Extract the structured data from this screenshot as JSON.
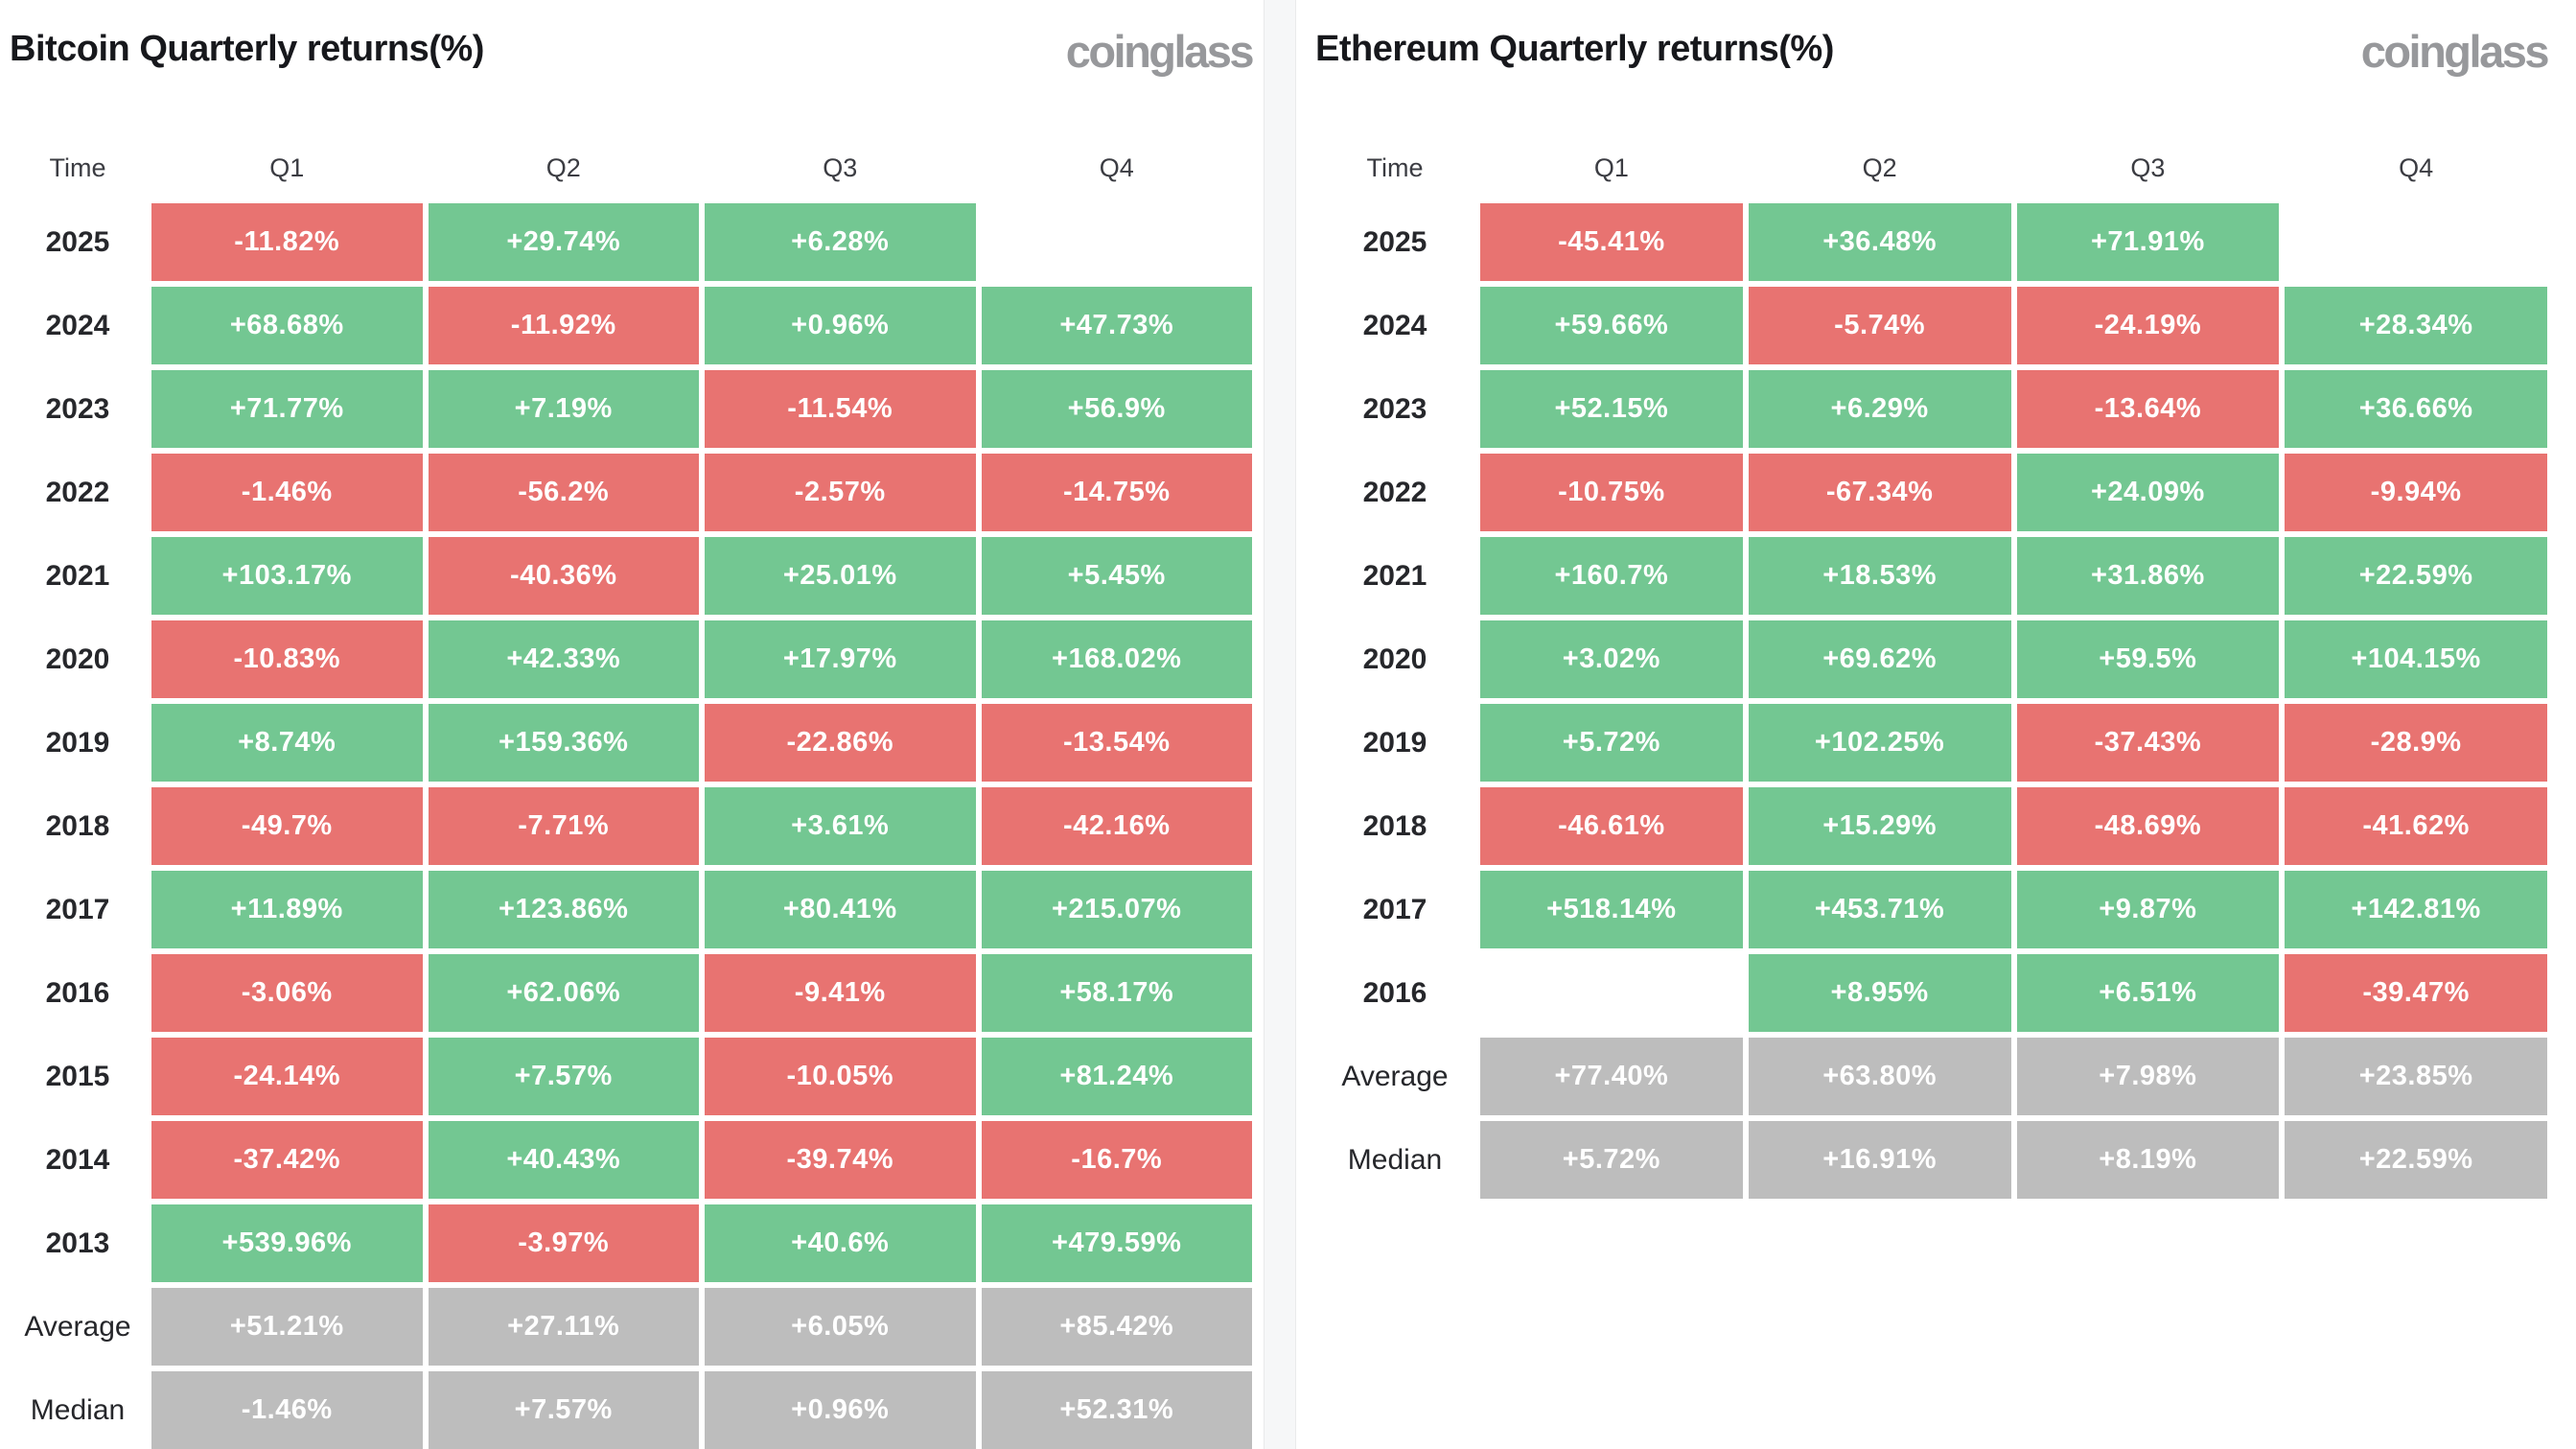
{
  "colors": {
    "positive": "#73C792",
    "negative": "#E87371",
    "summary": "#BDBDBD",
    "cell_text": "#FFFFFF",
    "title_text": "#17181C",
    "brand_text": "#97989B",
    "divider": "#F6F7F8"
  },
  "panels": [
    {
      "title": "Bitcoin Quarterly returns(%)",
      "brand": "coinglass",
      "columns": [
        "Time",
        "Q1",
        "Q2",
        "Q3",
        "Q4"
      ],
      "rows": [
        {
          "label": "2025",
          "kind": "year",
          "cells": [
            "-11.82%",
            "+29.74%",
            "+6.28%",
            ""
          ]
        },
        {
          "label": "2024",
          "kind": "year",
          "cells": [
            "+68.68%",
            "-11.92%",
            "+0.96%",
            "+47.73%"
          ]
        },
        {
          "label": "2023",
          "kind": "year",
          "cells": [
            "+71.77%",
            "+7.19%",
            "-11.54%",
            "+56.9%"
          ]
        },
        {
          "label": "2022",
          "kind": "year",
          "cells": [
            "-1.46%",
            "-56.2%",
            "-2.57%",
            "-14.75%"
          ]
        },
        {
          "label": "2021",
          "kind": "year",
          "cells": [
            "+103.17%",
            "-40.36%",
            "+25.01%",
            "+5.45%"
          ]
        },
        {
          "label": "2020",
          "kind": "year",
          "cells": [
            "-10.83%",
            "+42.33%",
            "+17.97%",
            "+168.02%"
          ]
        },
        {
          "label": "2019",
          "kind": "year",
          "cells": [
            "+8.74%",
            "+159.36%",
            "-22.86%",
            "-13.54%"
          ]
        },
        {
          "label": "2018",
          "kind": "year",
          "cells": [
            "-49.7%",
            "-7.71%",
            "+3.61%",
            "-42.16%"
          ]
        },
        {
          "label": "2017",
          "kind": "year",
          "cells": [
            "+11.89%",
            "+123.86%",
            "+80.41%",
            "+215.07%"
          ]
        },
        {
          "label": "2016",
          "kind": "year",
          "cells": [
            "-3.06%",
            "+62.06%",
            "-9.41%",
            "+58.17%"
          ]
        },
        {
          "label": "2015",
          "kind": "year",
          "cells": [
            "-24.14%",
            "+7.57%",
            "-10.05%",
            "+81.24%"
          ]
        },
        {
          "label": "2014",
          "kind": "year",
          "cells": [
            "-37.42%",
            "+40.43%",
            "-39.74%",
            "-16.7%"
          ]
        },
        {
          "label": "2013",
          "kind": "year",
          "cells": [
            "+539.96%",
            "-3.97%",
            "+40.6%",
            "+479.59%"
          ]
        },
        {
          "label": "Average",
          "kind": "summary",
          "cells": [
            "+51.21%",
            "+27.11%",
            "+6.05%",
            "+85.42%"
          ]
        },
        {
          "label": "Median",
          "kind": "summary",
          "cells": [
            "-1.46%",
            "+7.57%",
            "+0.96%",
            "+52.31%"
          ]
        }
      ]
    },
    {
      "title": "Ethereum Quarterly returns(%)",
      "brand": "coinglass",
      "columns": [
        "Time",
        "Q1",
        "Q2",
        "Q3",
        "Q4"
      ],
      "rows": [
        {
          "label": "2025",
          "kind": "year",
          "cells": [
            "-45.41%",
            "+36.48%",
            "+71.91%",
            ""
          ]
        },
        {
          "label": "2024",
          "kind": "year",
          "cells": [
            "+59.66%",
            "-5.74%",
            "-24.19%",
            "+28.34%"
          ]
        },
        {
          "label": "2023",
          "kind": "year",
          "cells": [
            "+52.15%",
            "+6.29%",
            "-13.64%",
            "+36.66%"
          ]
        },
        {
          "label": "2022",
          "kind": "year",
          "cells": [
            "-10.75%",
            "-67.34%",
            "+24.09%",
            "-9.94%"
          ]
        },
        {
          "label": "2021",
          "kind": "year",
          "cells": [
            "+160.7%",
            "+18.53%",
            "+31.86%",
            "+22.59%"
          ]
        },
        {
          "label": "2020",
          "kind": "year",
          "cells": [
            "+3.02%",
            "+69.62%",
            "+59.5%",
            "+104.15%"
          ]
        },
        {
          "label": "2019",
          "kind": "year",
          "cells": [
            "+5.72%",
            "+102.25%",
            "-37.43%",
            "-28.9%"
          ]
        },
        {
          "label": "2018",
          "kind": "year",
          "cells": [
            "-46.61%",
            "+15.29%",
            "-48.69%",
            "-41.62%"
          ]
        },
        {
          "label": "2017",
          "kind": "year",
          "cells": [
            "+518.14%",
            "+453.71%",
            "+9.87%",
            "+142.81%"
          ]
        },
        {
          "label": "2016",
          "kind": "year",
          "cells": [
            "",
            "+8.95%",
            "+6.51%",
            "-39.47%"
          ]
        },
        {
          "label": "Average",
          "kind": "summary",
          "cells": [
            "+77.40%",
            "+63.80%",
            "+7.98%",
            "+23.85%"
          ]
        },
        {
          "label": "Median",
          "kind": "summary",
          "cells": [
            "+5.72%",
            "+16.91%",
            "+8.19%",
            "+22.59%"
          ]
        }
      ]
    }
  ],
  "chart_data": [
    {
      "type": "heatmap",
      "title": "Bitcoin Quarterly returns(%)",
      "columns": [
        "Q1",
        "Q2",
        "Q3",
        "Q4"
      ],
      "row_labels": [
        "2025",
        "2024",
        "2023",
        "2022",
        "2021",
        "2020",
        "2019",
        "2018",
        "2017",
        "2016",
        "2015",
        "2014",
        "2013",
        "Average",
        "Median"
      ],
      "values": [
        [
          -11.82,
          29.74,
          6.28,
          null
        ],
        [
          68.68,
          -11.92,
          0.96,
          47.73
        ],
        [
          71.77,
          7.19,
          -11.54,
          56.9
        ],
        [
          -1.46,
          -56.2,
          -2.57,
          -14.75
        ],
        [
          103.17,
          -40.36,
          25.01,
          5.45
        ],
        [
          -10.83,
          42.33,
          17.97,
          168.02
        ],
        [
          8.74,
          159.36,
          -22.86,
          -13.54
        ],
        [
          -49.7,
          -7.71,
          3.61,
          -42.16
        ],
        [
          11.89,
          123.86,
          80.41,
          215.07
        ],
        [
          -3.06,
          62.06,
          -9.41,
          58.17
        ],
        [
          -24.14,
          7.57,
          -10.05,
          81.24
        ],
        [
          -37.42,
          40.43,
          -39.74,
          -16.7
        ],
        [
          539.96,
          -3.97,
          40.6,
          479.59
        ],
        [
          51.21,
          27.11,
          6.05,
          85.42
        ],
        [
          -1.46,
          7.57,
          0.96,
          52.31
        ]
      ],
      "color_rule": "green if positive, red if negative, gray for Average/Median rows",
      "unit": "%"
    },
    {
      "type": "heatmap",
      "title": "Ethereum Quarterly returns(%)",
      "columns": [
        "Q1",
        "Q2",
        "Q3",
        "Q4"
      ],
      "row_labels": [
        "2025",
        "2024",
        "2023",
        "2022",
        "2021",
        "2020",
        "2019",
        "2018",
        "2017",
        "2016",
        "Average",
        "Median"
      ],
      "values": [
        [
          -45.41,
          36.48,
          71.91,
          null
        ],
        [
          59.66,
          -5.74,
          -24.19,
          28.34
        ],
        [
          52.15,
          6.29,
          -13.64,
          36.66
        ],
        [
          -10.75,
          -67.34,
          24.09,
          -9.94
        ],
        [
          160.7,
          18.53,
          31.86,
          22.59
        ],
        [
          3.02,
          69.62,
          59.5,
          104.15
        ],
        [
          5.72,
          102.25,
          -37.43,
          -28.9
        ],
        [
          -46.61,
          15.29,
          -48.69,
          -41.62
        ],
        [
          518.14,
          453.71,
          9.87,
          142.81
        ],
        [
          null,
          8.95,
          6.51,
          -39.47
        ],
        [
          77.4,
          63.8,
          7.98,
          23.85
        ],
        [
          5.72,
          16.91,
          8.19,
          22.59
        ]
      ],
      "color_rule": "green if positive, red if negative, gray for Average/Median rows",
      "unit": "%"
    }
  ]
}
